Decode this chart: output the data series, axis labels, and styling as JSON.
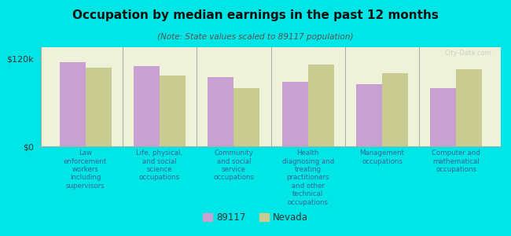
{
  "title": "Occupation by median earnings in the past 12 months",
  "subtitle": "(Note: State values scaled to 89117 population)",
  "background_color": "#00e5e5",
  "plot_bg_color": "#eef2d8",
  "bar_color_89117": "#c8a0d2",
  "bar_color_nevada": "#c8cc90",
  "ymax": 120000,
  "ytick_labels": [
    "$0",
    "$120k"
  ],
  "categories": [
    "Law\nenforcement\nworkers\nincluding\nsupervisors",
    "Life, physical,\nand social\nscience\noccupations",
    "Community\nand social\nservice\noccupations",
    "Health\ndiagnosing and\ntreating\npractitioners\nand other\ntechnical\noccupations",
    "Management\noccupations",
    "Computer and\nmathematical\noccupations"
  ],
  "values_89117": [
    115000,
    110000,
    95000,
    88000,
    85000,
    80000
  ],
  "values_nevada": [
    108000,
    97000,
    80000,
    112000,
    100000,
    105000
  ],
  "legend_labels": [
    "89117",
    "Nevada"
  ],
  "watermark": "City-Data.com"
}
